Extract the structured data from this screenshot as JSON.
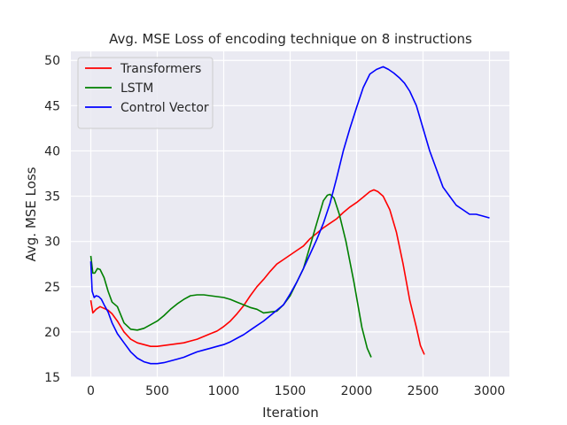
{
  "chart_data": {
    "type": "line",
    "title": "Avg. MSE Loss of encoding technique on 8 instructions",
    "xlabel": "Iteration",
    "ylabel": "Avg. MSE Loss",
    "xlim": [
      -150,
      3150
    ],
    "ylim": [
      15,
      51
    ],
    "xticks": [
      0,
      500,
      1000,
      1500,
      2000,
      2500,
      3000
    ],
    "yticks": [
      15,
      20,
      25,
      30,
      35,
      40,
      45,
      50
    ],
    "grid": true,
    "legend_position": "top-left",
    "series": [
      {
        "name": "Transformers",
        "color": "#ff0000",
        "x": [
          0,
          15,
          40,
          70,
          100,
          130,
          160,
          200,
          250,
          300,
          350,
          400,
          450,
          500,
          550,
          600,
          650,
          700,
          750,
          800,
          850,
          900,
          950,
          1000,
          1050,
          1100,
          1150,
          1200,
          1250,
          1300,
          1350,
          1400,
          1450,
          1500,
          1550,
          1600,
          1650,
          1700,
          1750,
          1800,
          1850,
          1900,
          1950,
          2000,
          2050,
          2100,
          2130,
          2160,
          2200,
          2250,
          2300,
          2350,
          2400,
          2450,
          2480,
          2510
        ],
        "values": [
          23.5,
          22.1,
          22.5,
          22.8,
          22.6,
          22.4,
          22.0,
          21.2,
          20.0,
          19.2,
          18.8,
          18.6,
          18.4,
          18.4,
          18.5,
          18.6,
          18.7,
          18.8,
          19.0,
          19.2,
          19.5,
          19.8,
          20.1,
          20.6,
          21.2,
          22.0,
          22.9,
          24.0,
          25.0,
          25.8,
          26.7,
          27.5,
          28.0,
          28.5,
          29.0,
          29.5,
          30.3,
          30.9,
          31.5,
          32.0,
          32.5,
          33.2,
          33.8,
          34.3,
          34.9,
          35.5,
          35.7,
          35.5,
          35.0,
          33.5,
          31.0,
          27.5,
          23.5,
          20.5,
          18.5,
          17.5
        ]
      },
      {
        "name": "LSTM",
        "color": "#008000",
        "x": [
          0,
          15,
          30,
          50,
          70,
          100,
          130,
          160,
          200,
          250,
          300,
          350,
          400,
          450,
          500,
          550,
          600,
          650,
          700,
          750,
          800,
          850,
          900,
          950,
          1000,
          1050,
          1100,
          1150,
          1200,
          1250,
          1300,
          1350,
          1400,
          1450,
          1500,
          1550,
          1600,
          1650,
          1700,
          1750,
          1780,
          1800,
          1830,
          1870,
          1920,
          1980,
          2040,
          2080,
          2110
        ],
        "values": [
          28.4,
          26.5,
          26.5,
          27.0,
          26.9,
          26.0,
          24.5,
          23.3,
          22.8,
          21.0,
          20.3,
          20.2,
          20.4,
          20.8,
          21.2,
          21.8,
          22.5,
          23.1,
          23.6,
          24.0,
          24.1,
          24.1,
          24.0,
          23.9,
          23.8,
          23.6,
          23.3,
          23.0,
          22.7,
          22.5,
          22.1,
          22.2,
          22.3,
          23.0,
          24.0,
          25.5,
          27.0,
          29.5,
          32.0,
          34.5,
          35.1,
          35.2,
          34.8,
          33.0,
          30.0,
          25.5,
          20.5,
          18.2,
          17.2
        ]
      },
      {
        "name": "Control Vector",
        "color": "#0000ff",
        "x": [
          0,
          10,
          25,
          40,
          60,
          80,
          100,
          130,
          160,
          200,
          250,
          300,
          350,
          400,
          450,
          500,
          550,
          600,
          650,
          700,
          750,
          800,
          850,
          900,
          950,
          1000,
          1050,
          1100,
          1150,
          1200,
          1250,
          1300,
          1350,
          1400,
          1450,
          1500,
          1550,
          1600,
          1650,
          1700,
          1750,
          1800,
          1850,
          1900,
          1950,
          2000,
          2050,
          2100,
          2150,
          2200,
          2240,
          2280,
          2320,
          2360,
          2400,
          2450,
          2500,
          2550,
          2600,
          2650,
          2700,
          2750,
          2800,
          2850,
          2900,
          2950,
          3000
        ],
        "values": [
          27.8,
          24.5,
          23.8,
          24.0,
          23.9,
          23.6,
          23.0,
          22.2,
          21.0,
          19.8,
          18.8,
          17.8,
          17.1,
          16.7,
          16.5,
          16.5,
          16.6,
          16.8,
          17.0,
          17.2,
          17.5,
          17.8,
          18.0,
          18.2,
          18.4,
          18.6,
          18.9,
          19.3,
          19.7,
          20.2,
          20.7,
          21.2,
          21.8,
          22.4,
          23.0,
          24.2,
          25.5,
          27.0,
          28.6,
          30.2,
          32.0,
          34.2,
          37.0,
          40.0,
          42.5,
          44.8,
          47.0,
          48.5,
          49.0,
          49.3,
          49.0,
          48.6,
          48.1,
          47.5,
          46.6,
          45.0,
          42.5,
          40.0,
          38.0,
          36.0,
          35.0,
          34.0,
          33.5,
          33.0,
          33.0,
          32.8,
          32.6
        ]
      }
    ]
  }
}
